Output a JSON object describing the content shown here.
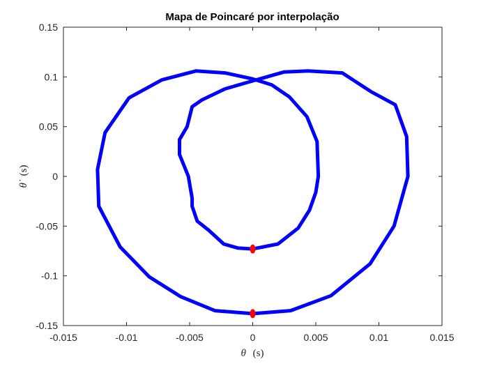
{
  "chart_data": {
    "type": "line",
    "title": "Mapa de Poincaré por interpolação",
    "xlabel": {
      "symbol": "θ",
      "unit": "(s)"
    },
    "ylabel": {
      "symbol": "θ̇",
      "unit": "(s)"
    },
    "xlim": [
      -0.015,
      0.015
    ],
    "ylim": [
      -0.15,
      0.15
    ],
    "x_ticks": [
      {
        "value": -0.015,
        "label": "-0.015"
      },
      {
        "value": -0.01,
        "label": "-0.01"
      },
      {
        "value": -0.005,
        "label": "-0.005"
      },
      {
        "value": 0,
        "label": "0"
      },
      {
        "value": 0.005,
        "label": "0.005"
      },
      {
        "value": 0.01,
        "label": "0.01"
      },
      {
        "value": 0.015,
        "label": "0.015"
      }
    ],
    "y_ticks": [
      {
        "value": 0.15,
        "label": "0.15"
      },
      {
        "value": 0.1,
        "label": "0.1"
      },
      {
        "value": 0.05,
        "label": "0.05"
      },
      {
        "value": 0,
        "label": "0"
      },
      {
        "value": -0.05,
        "label": "-0.05"
      },
      {
        "value": -0.1,
        "label": "-0.1"
      },
      {
        "value": -0.15,
        "label": "-0.15"
      }
    ],
    "grid": false,
    "line_color": "#0000ff",
    "marker_color": "#ff0000",
    "series": [
      {
        "values": [
          {
            "x": 0.0,
            "y": -0.138
          },
          {
            "x": 0.003,
            "y": -0.135
          },
          {
            "x": 0.0062,
            "y": -0.12
          },
          {
            "x": 0.0093,
            "y": -0.088
          },
          {
            "x": 0.0112,
            "y": -0.05
          },
          {
            "x": 0.0123,
            "y": 0.0
          },
          {
            "x": 0.0122,
            "y": 0.04
          },
          {
            "x": 0.0113,
            "y": 0.072
          },
          {
            "x": 0.0094,
            "y": 0.085
          },
          {
            "x": 0.0071,
            "y": 0.104
          },
          {
            "x": 0.0044,
            "y": 0.106
          },
          {
            "x": 0.0025,
            "y": 0.105
          },
          {
            "x": 0.0,
            "y": 0.096
          },
          {
            "x": -0.0022,
            "y": 0.088
          },
          {
            "x": -0.004,
            "y": 0.077
          },
          {
            "x": -0.0048,
            "y": 0.07
          },
          {
            "x": -0.0052,
            "y": 0.05
          },
          {
            "x": -0.0058,
            "y": 0.037
          },
          {
            "x": -0.0058,
            "y": 0.022
          },
          {
            "x": -0.0051,
            "y": 0.0
          },
          {
            "x": -0.0048,
            "y": -0.022
          },
          {
            "x": -0.0048,
            "y": -0.03
          },
          {
            "x": -0.0044,
            "y": -0.045
          },
          {
            "x": -0.0035,
            "y": -0.054
          },
          {
            "x": -0.0023,
            "y": -0.068
          },
          {
            "x": -0.0012,
            "y": -0.072
          },
          {
            "x": 0.0,
            "y": -0.073
          },
          {
            "x": 0.002,
            "y": -0.068
          },
          {
            "x": 0.0036,
            "y": -0.052
          },
          {
            "x": 0.0045,
            "y": -0.034
          },
          {
            "x": 0.005,
            "y": -0.016
          },
          {
            "x": 0.0052,
            "y": 0.0
          },
          {
            "x": 0.0051,
            "y": 0.035
          },
          {
            "x": 0.0043,
            "y": 0.06
          },
          {
            "x": 0.0029,
            "y": 0.08
          },
          {
            "x": 0.0015,
            "y": 0.092
          },
          {
            "x": 0.0,
            "y": 0.098
          },
          {
            "x": -0.0022,
            "y": 0.104
          },
          {
            "x": -0.0045,
            "y": 0.106
          },
          {
            "x": -0.0072,
            "y": 0.097
          },
          {
            "x": -0.0098,
            "y": 0.079
          },
          {
            "x": -0.0117,
            "y": 0.044
          },
          {
            "x": -0.0123,
            "y": 0.007
          },
          {
            "x": -0.0122,
            "y": -0.03
          },
          {
            "x": -0.0105,
            "y": -0.071
          },
          {
            "x": -0.0082,
            "y": -0.101
          },
          {
            "x": -0.0057,
            "y": -0.121
          },
          {
            "x": -0.003,
            "y": -0.135
          },
          {
            "x": 0.0,
            "y": -0.138
          }
        ]
      }
    ],
    "markers": [
      {
        "x": 0.0,
        "y": -0.073
      },
      {
        "x": 0.0,
        "y": -0.138
      }
    ]
  }
}
